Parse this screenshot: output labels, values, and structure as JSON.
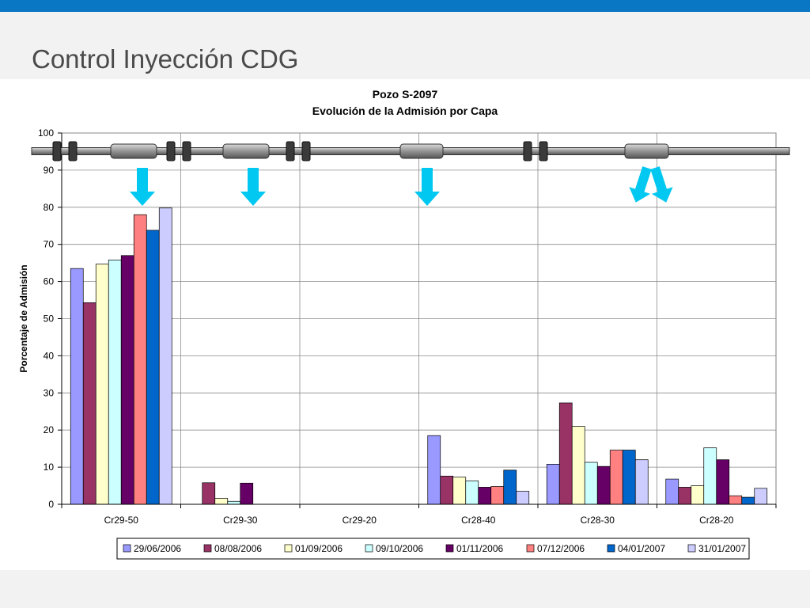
{
  "slide": {
    "title": "Control Inyección CDG"
  },
  "chart_data": {
    "type": "bar",
    "title": "Pozo S-2097",
    "subtitle": "Evolución de la Admisión por Capa",
    "xlabel": "",
    "ylabel": "Porcentaje de Admisión",
    "ylim": [
      0,
      100
    ],
    "yticks": [
      0,
      10,
      20,
      30,
      40,
      50,
      60,
      70,
      80,
      90,
      100
    ],
    "grid": true,
    "legend_position": "bottom",
    "categories": [
      "Cr29-50",
      "Cr29-30",
      "Cr29-20",
      "Cr28-40",
      "Cr28-30",
      "Cr28-20"
    ],
    "series": [
      {
        "name": "29/06/2006",
        "color": "#9999ff",
        "values": [
          63.5,
          0,
          0,
          18.5,
          10.8,
          6.8
        ]
      },
      {
        "name": "08/08/2006",
        "color": "#993366",
        "values": [
          54.3,
          5.8,
          0,
          7.6,
          27.3,
          4.6
        ]
      },
      {
        "name": "01/09/2006",
        "color": "#ffffcc",
        "values": [
          64.7,
          1.6,
          0,
          7.3,
          21.0,
          5.0
        ]
      },
      {
        "name": "09/10/2006",
        "color": "#ccffff",
        "values": [
          65.8,
          0.8,
          0,
          6.3,
          11.3,
          15.2
        ]
      },
      {
        "name": "01/11/2006",
        "color": "#660066",
        "values": [
          67.0,
          5.7,
          0,
          4.6,
          10.2,
          12.0
        ]
      },
      {
        "name": "07/12/2006",
        "color": "#ff8080",
        "values": [
          78.0,
          0,
          0,
          4.8,
          14.6,
          2.3
        ]
      },
      {
        "name": "04/01/2007",
        "color": "#0066cc",
        "values": [
          73.8,
          0,
          0,
          9.2,
          14.6,
          1.9
        ]
      },
      {
        "name": "31/01/2007",
        "color": "#ccccff",
        "values": [
          79.8,
          0,
          0,
          3.5,
          12.0,
          4.3
        ]
      }
    ]
  },
  "colors": {
    "brand_bar": "#0a77c5",
    "arrow": "#00c8f0",
    "pipe": "#8c8c8c"
  }
}
